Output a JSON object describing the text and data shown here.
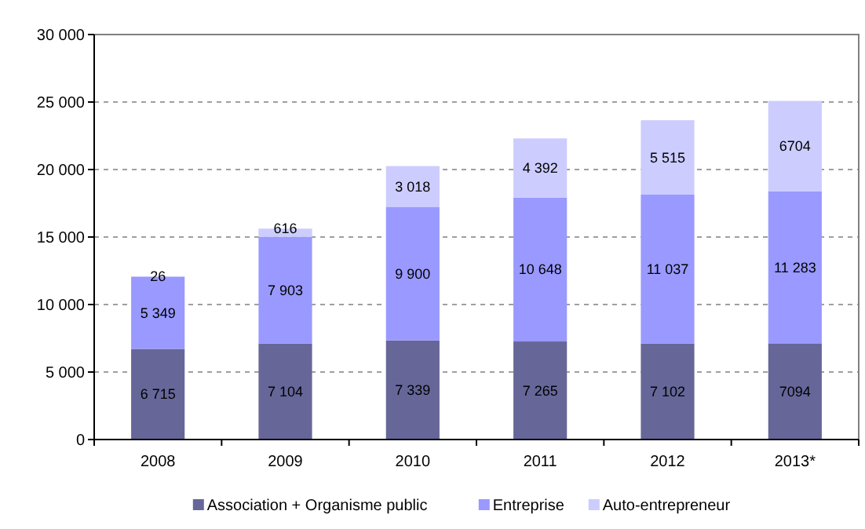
{
  "chart_data": {
    "type": "bar",
    "stacked": true,
    "categories": [
      "2008",
      "2009",
      "2010",
      "2011",
      "2012",
      "2013*"
    ],
    "series": [
      {
        "name": "Association + Organisme public",
        "color": "#666699",
        "values": [
          6715,
          7104,
          7339,
          7265,
          7102,
          7094
        ],
        "value_labels": [
          "6 715",
          "7 104",
          "7 339",
          "7 265",
          "7 102",
          "7094"
        ]
      },
      {
        "name": "Entreprise",
        "color": "#9999ff",
        "values": [
          5349,
          7903,
          9900,
          10648,
          11037,
          11283
        ],
        "value_labels": [
          "5 349",
          "7 903",
          "9 900",
          "10 648",
          "11 037",
          "11 283"
        ]
      },
      {
        "name": "Auto-entrepreneur",
        "color": "#ccccff",
        "values": [
          26,
          616,
          3018,
          4392,
          5515,
          6704
        ],
        "value_labels": [
          "26",
          "616",
          "3 018",
          "4 392",
          "5 515",
          "6704"
        ]
      }
    ],
    "ylim": [
      0,
      30000
    ],
    "yticks": [
      0,
      {
        "value": 5000,
        "label": "5 000"
      },
      {
        "value": 10000,
        "label": "10 000"
      },
      {
        "value": 15000,
        "label": "15 000"
      },
      {
        "value": 20000,
        "label": "20 000"
      },
      {
        "value": 25000,
        "label": "25 000"
      },
      {
        "value": 30000,
        "label": "30 000"
      }
    ],
    "grid": "y",
    "legend": "bottom"
  }
}
